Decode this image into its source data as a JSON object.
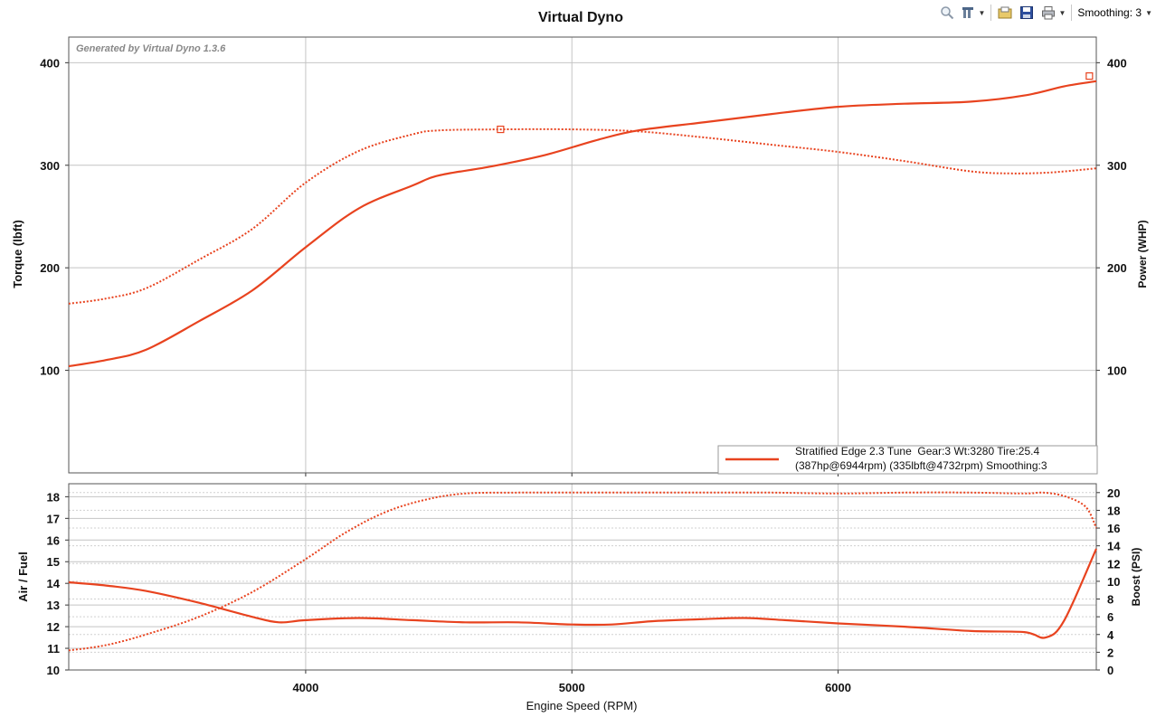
{
  "toolbar": {
    "zoom_icon": "magnifier-icon",
    "tools_icon": "tools-icon",
    "open_icon": "folder-icon",
    "save_icon": "save-icon",
    "print_icon": "print-icon",
    "smoothing_label": "Smoothing: 3"
  },
  "chart_data": [
    {
      "type": "line",
      "title": "Virtual Dyno",
      "watermark": "Generated by Virtual Dyno 1.3.6",
      "xlabel": "Engine Speed (RPM)",
      "ylabel_left": "Torque (lbft)",
      "ylabel_right": "Power (WHP)",
      "xlim": [
        3110,
        6970
      ],
      "ylim": [
        0,
        425
      ],
      "y2lim": [
        0,
        425
      ],
      "x_ticks": [
        4000,
        5000,
        6000
      ],
      "y_ticks": [
        100,
        200,
        300,
        400
      ],
      "y2_ticks": [
        100,
        200,
        300,
        400
      ],
      "grid": true,
      "legend_position": "bottom-right",
      "legend": {
        "line1": "Stratified Edge 2.3 Tune  Gear:3 Wt:3280 Tire:25.4",
        "line2": "(387hp@6944rpm) (335lbft@4732rpm) Smoothing:3",
        "color": "#e8431f"
      },
      "series": [
        {
          "axis": "right",
          "style": "solid",
          "x": [
            3110,
            3250,
            3400,
            3600,
            3800,
            4000,
            4200,
            4400,
            4500,
            4700,
            4900,
            5100,
            5250,
            5500,
            5750,
            6000,
            6250,
            6500,
            6700,
            6850,
            6970
          ],
          "values": [
            104,
            110,
            120,
            148,
            178,
            220,
            258,
            280,
            290,
            299,
            310,
            325,
            334,
            342,
            350,
            357,
            360,
            362,
            368,
            377,
            382
          ]
        },
        {
          "axis": "left",
          "style": "dotted",
          "x": [
            3110,
            3250,
            3400,
            3600,
            3800,
            4000,
            4200,
            4400,
            4500,
            4732,
            5000,
            5250,
            5500,
            5750,
            6000,
            6250,
            6500,
            6650,
            6800,
            6970
          ],
          "values": [
            165,
            170,
            180,
            208,
            238,
            283,
            314,
            330,
            334,
            335,
            335,
            333,
            327,
            320,
            313,
            304,
            294,
            292,
            293,
            297
          ]
        }
      ],
      "markers": [
        {
          "series": 0,
          "x": 6944,
          "y": 387
        },
        {
          "series": 1,
          "x": 4732,
          "y": 335
        }
      ]
    },
    {
      "type": "line",
      "xlabel": "Engine Speed (RPM)",
      "ylabel_left": "Air / Fuel",
      "ylabel_right": "Boost (PSI)",
      "xlim": [
        3110,
        6970
      ],
      "ylim": [
        10,
        18.6
      ],
      "y2lim": [
        0,
        21
      ],
      "x_ticks": [
        4000,
        5000,
        6000
      ],
      "y_ticks": [
        10,
        11,
        12,
        13,
        14,
        15,
        16,
        17,
        18
      ],
      "y2_ticks": [
        0,
        2,
        4,
        6,
        8,
        10,
        12,
        14,
        16,
        18,
        20
      ],
      "grid": true,
      "series": [
        {
          "axis": "left",
          "style": "solid",
          "x": [
            3110,
            3250,
            3400,
            3600,
            3800,
            3900,
            4000,
            4200,
            4400,
            4600,
            4800,
            5000,
            5150,
            5300,
            5500,
            5650,
            5800,
            6000,
            6250,
            6500,
            6700,
            6780,
            6850,
            6970
          ],
          "values": [
            14.05,
            13.9,
            13.65,
            13.1,
            12.45,
            12.2,
            12.3,
            12.4,
            12.3,
            12.2,
            12.2,
            12.1,
            12.1,
            12.25,
            12.35,
            12.4,
            12.3,
            12.15,
            12.0,
            11.8,
            11.75,
            11.5,
            12.3,
            15.6
          ]
        },
        {
          "axis": "right",
          "style": "dotted",
          "x": [
            3110,
            3250,
            3400,
            3600,
            3800,
            4000,
            4150,
            4300,
            4450,
            4600,
            4800,
            5000,
            5250,
            5500,
            5750,
            6000,
            6250,
            6500,
            6700,
            6770,
            6850,
            6930,
            6970
          ],
          "values": [
            2.2,
            2.8,
            4.0,
            6.0,
            8.8,
            12.5,
            15.5,
            17.8,
            19.2,
            19.9,
            20.0,
            20.0,
            20.0,
            20.0,
            20.0,
            19.9,
            20.0,
            20.0,
            19.9,
            20.0,
            19.6,
            18.4,
            16.0
          ]
        }
      ]
    }
  ]
}
